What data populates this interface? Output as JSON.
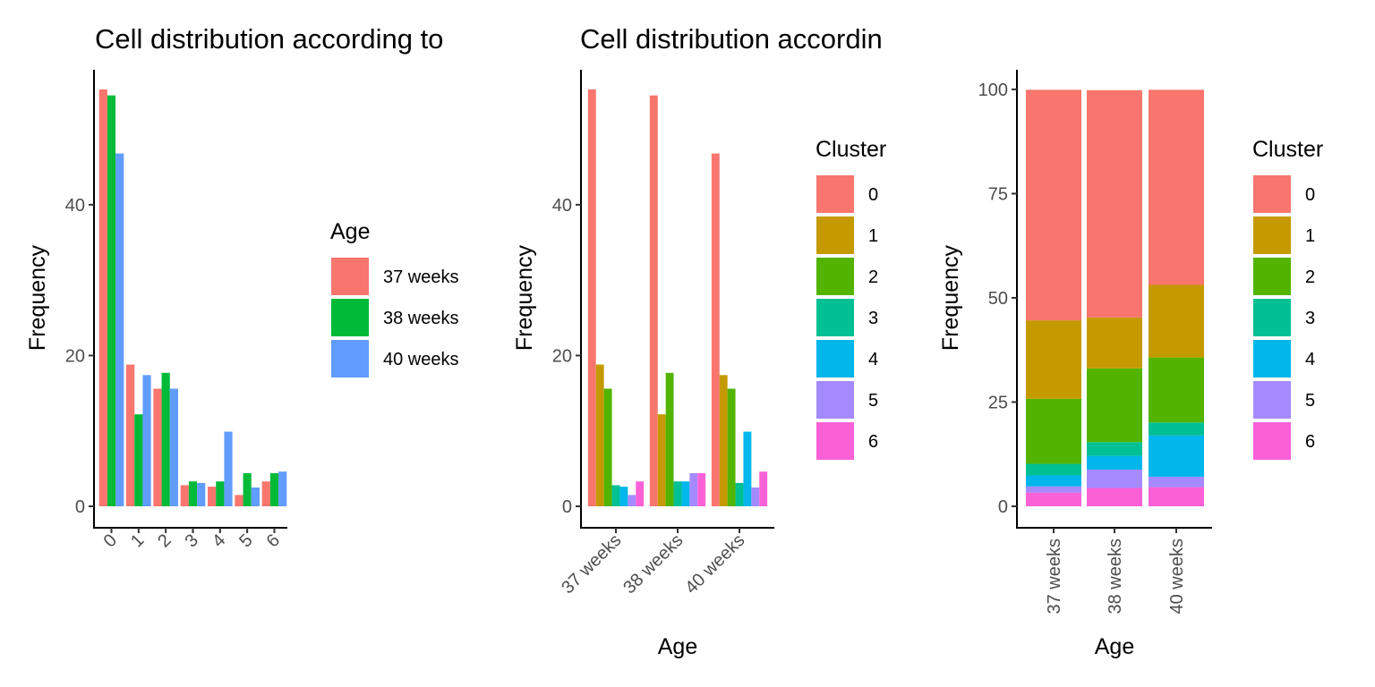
{
  "colors": {
    "age": [
      "#F8766D",
      "#00BA38",
      "#619CFF"
    ],
    "cluster": [
      "#F8766D",
      "#C49A00",
      "#53B400",
      "#00C094",
      "#00B6EB",
      "#A58AFF",
      "#FB61D7"
    ]
  },
  "chart_data": [
    {
      "type": "bar",
      "title": "Cell distribution according to",
      "xlabel": "",
      "ylabel": "Frequency",
      "categories": [
        "0",
        "1",
        "2",
        "3",
        "4",
        "5",
        "6"
      ],
      "yticks": [
        0,
        20,
        40
      ],
      "ylim": [
        0,
        57.9
      ],
      "legend_title": "Age",
      "legend_position": "right",
      "series": [
        {
          "name": "37 weeks",
          "values": [
            55.3,
            18.8,
            15.6,
            2.8,
            2.6,
            1.5,
            3.3
          ]
        },
        {
          "name": "38 weeks",
          "values": [
            54.5,
            12.2,
            17.7,
            3.3,
            3.3,
            4.4,
            4.4
          ]
        },
        {
          "name": "40 weeks",
          "values": [
            46.8,
            17.4,
            15.6,
            3.1,
            9.9,
            2.5,
            4.6
          ]
        }
      ]
    },
    {
      "type": "bar",
      "title": "Cell distribution accordin",
      "xlabel": "Age",
      "ylabel": "Frequency",
      "categories": [
        "37 weeks",
        "38 weeks",
        "40 weeks"
      ],
      "yticks": [
        0,
        20,
        40
      ],
      "ylim": [
        0,
        57.9
      ],
      "legend_title": "Cluster",
      "legend_position": "right",
      "series": [
        {
          "name": "0",
          "values": [
            55.3,
            54.5,
            46.8
          ]
        },
        {
          "name": "1",
          "values": [
            18.8,
            12.2,
            17.4
          ]
        },
        {
          "name": "2",
          "values": [
            15.6,
            17.7,
            15.6
          ]
        },
        {
          "name": "3",
          "values": [
            2.8,
            3.3,
            3.1
          ]
        },
        {
          "name": "4",
          "values": [
            2.6,
            3.3,
            9.9
          ]
        },
        {
          "name": "5",
          "values": [
            1.5,
            4.4,
            2.5
          ]
        },
        {
          "name": "6",
          "values": [
            3.3,
            4.4,
            4.6
          ]
        }
      ]
    },
    {
      "type": "bar",
      "stacked": true,
      "title": "",
      "xlabel": "Age",
      "ylabel": "Frequency",
      "categories": [
        "37 weeks",
        "38 weeks",
        "40 weeks"
      ],
      "yticks": [
        0,
        25,
        50,
        75,
        100
      ],
      "ylim": [
        0,
        104.7
      ],
      "legend_title": "Cluster",
      "legend_position": "right",
      "series": [
        {
          "name": "0",
          "values": [
            55.3,
            54.5,
            46.8
          ]
        },
        {
          "name": "1",
          "values": [
            18.8,
            12.2,
            17.4
          ]
        },
        {
          "name": "2",
          "values": [
            15.6,
            17.7,
            15.6
          ]
        },
        {
          "name": "3",
          "values": [
            2.8,
            3.3,
            3.1
          ]
        },
        {
          "name": "4",
          "values": [
            2.6,
            3.3,
            9.9
          ]
        },
        {
          "name": "5",
          "values": [
            1.5,
            4.4,
            2.5
          ]
        },
        {
          "name": "6",
          "values": [
            3.3,
            4.4,
            4.6
          ]
        }
      ]
    }
  ]
}
